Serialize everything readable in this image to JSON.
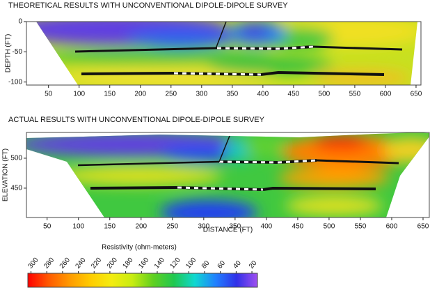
{
  "chart_data": [
    {
      "type": "heatmap",
      "title": "THEORETICAL RESULTS WITH UNCONVENTIONAL DIPOLE-DIPOLE SURVEY",
      "y_label": "DEPTH (FT)",
      "xlim": [
        14,
        658
      ],
      "xticks": [
        50,
        100,
        150,
        200,
        250,
        300,
        350,
        400,
        450,
        500,
        550,
        600,
        650
      ],
      "ylim": [
        -105,
        0
      ],
      "yticks": [
        0,
        -50,
        -100
      ]
    },
    {
      "type": "heatmap",
      "title": "ACTUAL RESULTS WITH UNCONVENTIONAL DIPOLE-DIPOLE SURVEY",
      "y_label": "ELEVATION (FT)",
      "x_label": "DISTANCE (FT)",
      "xlim": [
        17,
        660
      ],
      "xticks": [
        50,
        100,
        150,
        200,
        250,
        300,
        350,
        400,
        450,
        500,
        550,
        600,
        650
      ],
      "ylim": [
        401,
        543
      ],
      "yticks": [
        450,
        500
      ]
    },
    {
      "type": "colorbar",
      "title": "Resistivity (ohm-meters)",
      "lim": [
        304,
        13
      ],
      "ticks": [
        300,
        280,
        260,
        240,
        220,
        200,
        180,
        160,
        140,
        120,
        100,
        80,
        60,
        40,
        20
      ],
      "colors": [
        "#ff0000",
        "#ff5a00",
        "#ff9a00",
        "#ffcc00",
        "#f4ec10",
        "#c8ec10",
        "#60d020",
        "#20c850",
        "#10d8d0",
        "#2080ff",
        "#3030e8",
        "#a050f0"
      ]
    }
  ]
}
